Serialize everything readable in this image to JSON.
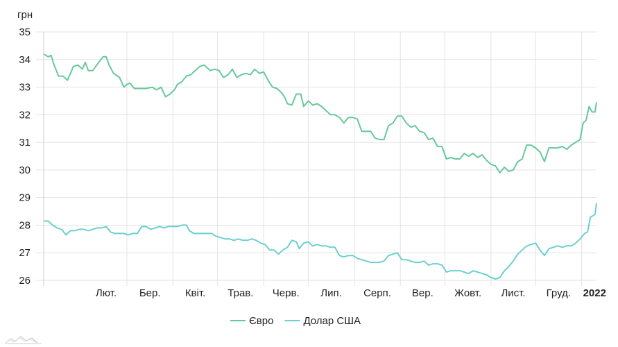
{
  "chart_data": {
    "type": "line",
    "y_unit_label": "грн",
    "ylim": [
      26,
      35
    ],
    "y_ticks": [
      26,
      27,
      28,
      29,
      30,
      31,
      32,
      33,
      34,
      35
    ],
    "xlim": [
      "2021-01-04",
      "2022-01-11"
    ],
    "x_tick_labels": [
      {
        "date": "2021-02-01",
        "label": "Лют."
      },
      {
        "date": "2021-03-01",
        "label": "Бер."
      },
      {
        "date": "2021-04-01",
        "label": "Квіт."
      },
      {
        "date": "2021-05-01",
        "label": "Трав."
      },
      {
        "date": "2021-06-01",
        "label": "Черв."
      },
      {
        "date": "2021-07-01",
        "label": "Лип."
      },
      {
        "date": "2021-08-01",
        "label": "Серп."
      },
      {
        "date": "2021-09-01",
        "label": "Вер."
      },
      {
        "date": "2021-10-01",
        "label": "Жовт."
      },
      {
        "date": "2021-11-01",
        "label": "Лист."
      },
      {
        "date": "2021-12-01",
        "label": "Груд."
      },
      {
        "date": "2022-01-01",
        "label": "2022",
        "bold": true
      }
    ],
    "grid": true,
    "legend_position": "bottom-center",
    "series": [
      {
        "name": "Євро",
        "color": "#66c99c",
        "points": [
          [
            "2021-01-04",
            34.2
          ],
          [
            "2021-01-07",
            34.1
          ],
          [
            "2021-01-09",
            34.15
          ],
          [
            "2021-01-11",
            33.8
          ],
          [
            "2021-01-14",
            33.4
          ],
          [
            "2021-01-17",
            33.4
          ],
          [
            "2021-01-20",
            33.25
          ],
          [
            "2021-01-24",
            33.75
          ],
          [
            "2021-01-27",
            33.8
          ],
          [
            "2021-01-30",
            33.65
          ],
          [
            "2021-02-01",
            33.9
          ],
          [
            "2021-02-03",
            33.6
          ],
          [
            "2021-02-06",
            33.6
          ],
          [
            "2021-02-10",
            33.9
          ],
          [
            "2021-02-13",
            34.1
          ],
          [
            "2021-02-15",
            34.1
          ],
          [
            "2021-02-17",
            33.8
          ],
          [
            "2021-02-20",
            33.5
          ],
          [
            "2021-02-24",
            33.35
          ],
          [
            "2021-02-27",
            33.0
          ],
          [
            "2021-03-01",
            33.1
          ],
          [
            "2021-03-03",
            33.15
          ],
          [
            "2021-03-06",
            32.95
          ],
          [
            "2021-03-10",
            32.95
          ],
          [
            "2021-03-14",
            32.95
          ],
          [
            "2021-03-18",
            33.0
          ],
          [
            "2021-03-21",
            32.9
          ],
          [
            "2021-03-24",
            33.0
          ],
          [
            "2021-03-27",
            32.65
          ],
          [
            "2021-03-30",
            32.75
          ],
          [
            "2021-04-02",
            32.9
          ],
          [
            "2021-04-04",
            33.1
          ],
          [
            "2021-04-07",
            33.2
          ],
          [
            "2021-04-10",
            33.4
          ],
          [
            "2021-04-13",
            33.45
          ],
          [
            "2021-04-16",
            33.6
          ],
          [
            "2021-04-19",
            33.75
          ],
          [
            "2021-04-22",
            33.8
          ],
          [
            "2021-04-26",
            33.6
          ],
          [
            "2021-04-29",
            33.65
          ],
          [
            "2021-05-02",
            33.6
          ],
          [
            "2021-05-05",
            33.35
          ],
          [
            "2021-05-08",
            33.45
          ],
          [
            "2021-05-11",
            33.65
          ],
          [
            "2021-05-14",
            33.35
          ],
          [
            "2021-05-17",
            33.45
          ],
          [
            "2021-05-20",
            33.5
          ],
          [
            "2021-05-23",
            33.45
          ],
          [
            "2021-05-26",
            33.65
          ],
          [
            "2021-05-29",
            33.5
          ],
          [
            "2021-06-01",
            33.55
          ],
          [
            "2021-06-04",
            33.25
          ],
          [
            "2021-06-07",
            33.0
          ],
          [
            "2021-06-10",
            32.95
          ],
          [
            "2021-06-13",
            32.8
          ],
          [
            "2021-06-15",
            32.65
          ],
          [
            "2021-06-17",
            32.4
          ],
          [
            "2021-06-20",
            32.35
          ],
          [
            "2021-06-23",
            32.75
          ],
          [
            "2021-06-26",
            32.75
          ],
          [
            "2021-06-28",
            32.3
          ],
          [
            "2021-07-01",
            32.5
          ],
          [
            "2021-07-04",
            32.35
          ],
          [
            "2021-07-07",
            32.4
          ],
          [
            "2021-07-10",
            32.3
          ],
          [
            "2021-07-13",
            32.15
          ],
          [
            "2021-07-16",
            32.0
          ],
          [
            "2021-07-19",
            32.0
          ],
          [
            "2021-07-22",
            31.9
          ],
          [
            "2021-07-25",
            31.7
          ],
          [
            "2021-07-28",
            31.9
          ],
          [
            "2021-07-31",
            31.9
          ],
          [
            "2021-08-03",
            31.85
          ],
          [
            "2021-08-06",
            31.4
          ],
          [
            "2021-08-09",
            31.4
          ],
          [
            "2021-08-12",
            31.4
          ],
          [
            "2021-08-15",
            31.15
          ],
          [
            "2021-08-18",
            31.1
          ],
          [
            "2021-08-21",
            31.1
          ],
          [
            "2021-08-24",
            31.6
          ],
          [
            "2021-08-27",
            31.7
          ],
          [
            "2021-08-30",
            31.95
          ],
          [
            "2021-09-02",
            31.95
          ],
          [
            "2021-09-05",
            31.7
          ],
          [
            "2021-09-08",
            31.55
          ],
          [
            "2021-09-11",
            31.6
          ],
          [
            "2021-09-14",
            31.4
          ],
          [
            "2021-09-17",
            31.35
          ],
          [
            "2021-09-20",
            31.1
          ],
          [
            "2021-09-23",
            31.15
          ],
          [
            "2021-09-26",
            30.85
          ],
          [
            "2021-09-29",
            30.85
          ],
          [
            "2021-10-02",
            30.4
          ],
          [
            "2021-10-05",
            30.45
          ],
          [
            "2021-10-08",
            30.4
          ],
          [
            "2021-10-11",
            30.4
          ],
          [
            "2021-10-14",
            30.6
          ],
          [
            "2021-10-17",
            30.5
          ],
          [
            "2021-10-20",
            30.6
          ],
          [
            "2021-10-23",
            30.45
          ],
          [
            "2021-10-26",
            30.55
          ],
          [
            "2021-10-29",
            30.35
          ],
          [
            "2021-11-01",
            30.2
          ],
          [
            "2021-11-04",
            30.15
          ],
          [
            "2021-11-07",
            29.9
          ],
          [
            "2021-11-10",
            30.1
          ],
          [
            "2021-11-13",
            29.95
          ],
          [
            "2021-11-16",
            30.0
          ],
          [
            "2021-11-19",
            30.3
          ],
          [
            "2021-11-22",
            30.4
          ],
          [
            "2021-11-25",
            30.9
          ],
          [
            "2021-11-28",
            30.9
          ],
          [
            "2021-12-01",
            30.8
          ],
          [
            "2021-12-04",
            30.65
          ],
          [
            "2021-12-07",
            30.3
          ],
          [
            "2021-12-10",
            30.8
          ],
          [
            "2021-12-13",
            30.8
          ],
          [
            "2021-12-16",
            30.8
          ],
          [
            "2021-12-19",
            30.85
          ],
          [
            "2021-12-22",
            30.75
          ],
          [
            "2021-12-25",
            30.9
          ],
          [
            "2021-12-28",
            31.0
          ],
          [
            "2021-12-31",
            31.1
          ],
          [
            "2022-01-02",
            31.7
          ],
          [
            "2022-01-04",
            31.8
          ],
          [
            "2022-01-06",
            32.3
          ],
          [
            "2022-01-08",
            32.1
          ],
          [
            "2022-01-10",
            32.1
          ],
          [
            "2022-01-11",
            32.45
          ]
        ]
      },
      {
        "name": "Долар США",
        "color": "#6ccfcf",
        "points": [
          [
            "2021-01-04",
            28.15
          ],
          [
            "2021-01-07",
            28.15
          ],
          [
            "2021-01-10",
            28.0
          ],
          [
            "2021-01-13",
            27.9
          ],
          [
            "2021-01-16",
            27.85
          ],
          [
            "2021-01-19",
            27.65
          ],
          [
            "2021-01-22",
            27.8
          ],
          [
            "2021-01-25",
            27.8
          ],
          [
            "2021-01-28",
            27.85
          ],
          [
            "2021-01-31",
            27.85
          ],
          [
            "2021-02-03",
            27.8
          ],
          [
            "2021-02-06",
            27.85
          ],
          [
            "2021-02-09",
            27.9
          ],
          [
            "2021-02-12",
            27.9
          ],
          [
            "2021-02-15",
            27.95
          ],
          [
            "2021-02-18",
            27.75
          ],
          [
            "2021-02-21",
            27.7
          ],
          [
            "2021-02-24",
            27.7
          ],
          [
            "2021-02-27",
            27.7
          ],
          [
            "2021-03-02",
            27.65
          ],
          [
            "2021-03-05",
            27.7
          ],
          [
            "2021-03-08",
            27.7
          ],
          [
            "2021-03-11",
            27.95
          ],
          [
            "2021-03-14",
            27.95
          ],
          [
            "2021-03-17",
            27.85
          ],
          [
            "2021-03-20",
            27.9
          ],
          [
            "2021-03-23",
            27.95
          ],
          [
            "2021-03-26",
            27.9
          ],
          [
            "2021-03-29",
            27.95
          ],
          [
            "2021-04-01",
            27.95
          ],
          [
            "2021-04-04",
            27.95
          ],
          [
            "2021-04-07",
            28.0
          ],
          [
            "2021-04-10",
            28.0
          ],
          [
            "2021-04-12",
            27.8
          ],
          [
            "2021-04-15",
            27.7
          ],
          [
            "2021-04-18",
            27.7
          ],
          [
            "2021-04-21",
            27.7
          ],
          [
            "2021-04-24",
            27.7
          ],
          [
            "2021-04-27",
            27.7
          ],
          [
            "2021-04-30",
            27.6
          ],
          [
            "2021-05-03",
            27.55
          ],
          [
            "2021-05-06",
            27.5
          ],
          [
            "2021-05-09",
            27.5
          ],
          [
            "2021-05-12",
            27.45
          ],
          [
            "2021-05-15",
            27.5
          ],
          [
            "2021-05-18",
            27.45
          ],
          [
            "2021-05-21",
            27.45
          ],
          [
            "2021-05-24",
            27.5
          ],
          [
            "2021-05-27",
            27.45
          ],
          [
            "2021-05-30",
            27.35
          ],
          [
            "2021-06-02",
            27.3
          ],
          [
            "2021-06-05",
            27.1
          ],
          [
            "2021-06-08",
            27.1
          ],
          [
            "2021-06-11",
            26.95
          ],
          [
            "2021-06-14",
            27.1
          ],
          [
            "2021-06-17",
            27.2
          ],
          [
            "2021-06-20",
            27.45
          ],
          [
            "2021-06-23",
            27.4
          ],
          [
            "2021-06-25",
            27.15
          ],
          [
            "2021-06-28",
            27.35
          ],
          [
            "2021-07-01",
            27.4
          ],
          [
            "2021-07-04",
            27.25
          ],
          [
            "2021-07-07",
            27.3
          ],
          [
            "2021-07-10",
            27.25
          ],
          [
            "2021-07-13",
            27.25
          ],
          [
            "2021-07-16",
            27.2
          ],
          [
            "2021-07-19",
            27.2
          ],
          [
            "2021-07-22",
            26.9
          ],
          [
            "2021-07-25",
            26.85
          ],
          [
            "2021-07-28",
            26.9
          ],
          [
            "2021-07-31",
            26.9
          ],
          [
            "2021-08-03",
            26.8
          ],
          [
            "2021-08-06",
            26.75
          ],
          [
            "2021-08-09",
            26.7
          ],
          [
            "2021-08-12",
            26.65
          ],
          [
            "2021-08-15",
            26.65
          ],
          [
            "2021-08-18",
            26.65
          ],
          [
            "2021-08-21",
            26.7
          ],
          [
            "2021-08-24",
            26.9
          ],
          [
            "2021-08-27",
            26.95
          ],
          [
            "2021-08-30",
            27.0
          ],
          [
            "2021-09-02",
            26.75
          ],
          [
            "2021-09-05",
            26.75
          ],
          [
            "2021-09-08",
            26.7
          ],
          [
            "2021-09-11",
            26.65
          ],
          [
            "2021-09-14",
            26.65
          ],
          [
            "2021-09-17",
            26.7
          ],
          [
            "2021-09-20",
            26.55
          ],
          [
            "2021-09-23",
            26.6
          ],
          [
            "2021-09-26",
            26.6
          ],
          [
            "2021-09-29",
            26.55
          ],
          [
            "2021-10-02",
            26.3
          ],
          [
            "2021-10-05",
            26.35
          ],
          [
            "2021-10-08",
            26.35
          ],
          [
            "2021-10-11",
            26.35
          ],
          [
            "2021-10-14",
            26.3
          ],
          [
            "2021-10-17",
            26.25
          ],
          [
            "2021-10-20",
            26.35
          ],
          [
            "2021-10-23",
            26.3
          ],
          [
            "2021-10-26",
            26.25
          ],
          [
            "2021-10-29",
            26.2
          ],
          [
            "2021-11-01",
            26.1
          ],
          [
            "2021-11-04",
            26.05
          ],
          [
            "2021-11-07",
            26.1
          ],
          [
            "2021-11-10",
            26.35
          ],
          [
            "2021-11-13",
            26.5
          ],
          [
            "2021-11-16",
            26.7
          ],
          [
            "2021-11-19",
            26.95
          ],
          [
            "2021-11-22",
            27.1
          ],
          [
            "2021-11-25",
            27.25
          ],
          [
            "2021-11-28",
            27.3
          ],
          [
            "2021-12-01",
            27.35
          ],
          [
            "2021-12-04",
            27.1
          ],
          [
            "2021-12-07",
            26.9
          ],
          [
            "2021-12-10",
            27.15
          ],
          [
            "2021-12-13",
            27.2
          ],
          [
            "2021-12-16",
            27.25
          ],
          [
            "2021-12-19",
            27.2
          ],
          [
            "2021-12-22",
            27.25
          ],
          [
            "2021-12-25",
            27.25
          ],
          [
            "2021-12-28",
            27.35
          ],
          [
            "2021-12-31",
            27.5
          ],
          [
            "2022-01-03",
            27.7
          ],
          [
            "2022-01-05",
            27.75
          ],
          [
            "2022-01-07",
            28.3
          ],
          [
            "2022-01-09",
            28.35
          ],
          [
            "2022-01-10",
            28.4
          ],
          [
            "2022-01-11",
            28.8
          ]
        ]
      }
    ]
  }
}
